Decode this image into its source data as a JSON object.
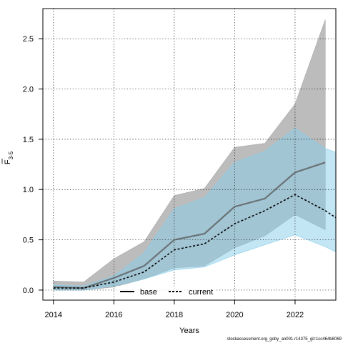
{
  "chart_data": {
    "type": "line",
    "xlabel": "Years",
    "ylabel_main": "F",
    "ylabel_sub": "3-5",
    "x": [
      2014,
      2015,
      2016,
      2017,
      2018,
      2019,
      2020,
      2021,
      2022,
      2023
    ],
    "xlim": [
      2013.65,
      2023.35
    ],
    "ylim": [
      -0.1,
      2.8
    ],
    "xticks": [
      2014,
      2016,
      2018,
      2020,
      2022
    ],
    "yticks": [
      0.0,
      0.5,
      1.0,
      1.5,
      2.0,
      2.5
    ],
    "ytick_labels": [
      "0.0",
      "0.5",
      "1.0",
      "1.5",
      "2.0",
      "2.5"
    ],
    "grid": true,
    "legend_position": "bottom",
    "series": [
      {
        "name": "base",
        "line_style": "solid",
        "line_color": "#555555",
        "band_color": "#a6a6a6",
        "x": [
          2014,
          2015,
          2016,
          2017,
          2018,
          2019,
          2020,
          2021,
          2022,
          2023
        ],
        "values": [
          0.03,
          0.02,
          0.12,
          0.24,
          0.5,
          0.56,
          0.83,
          0.91,
          1.17,
          1.27
        ],
        "lower": [
          0.0,
          0.0,
          0.03,
          0.11,
          0.22,
          0.24,
          0.42,
          0.54,
          0.75,
          0.6
        ],
        "upper": [
          0.09,
          0.08,
          0.31,
          0.48,
          0.94,
          1.01,
          1.42,
          1.46,
          1.85,
          2.69
        ]
      },
      {
        "name": "current",
        "line_style": "dashed",
        "line_color": "#000000",
        "band_color": "#87ceeb",
        "x": [
          2014,
          2015,
          2016,
          2017,
          2018,
          2019,
          2020,
          2021,
          2022,
          2023,
          2023.35
        ],
        "values": [
          0.02,
          0.02,
          0.08,
          0.18,
          0.4,
          0.46,
          0.66,
          0.79,
          0.95,
          0.79,
          0.72
        ],
        "lower": [
          0.0,
          0.0,
          0.04,
          0.11,
          0.2,
          0.23,
          0.35,
          0.45,
          0.55,
          0.43,
          0.38
        ],
        "upper": [
          0.05,
          0.04,
          0.14,
          0.37,
          0.81,
          0.92,
          1.27,
          1.38,
          1.61,
          1.41,
          1.37
        ]
      }
    ],
    "footer": "stockassessment.org_goby_an001.r14375_git:1cc464b8069"
  }
}
